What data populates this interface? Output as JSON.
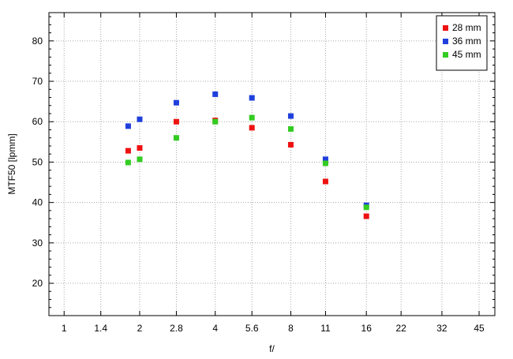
{
  "chart_data": {
    "type": "scatter",
    "title": "",
    "xlabel": "f/",
    "ylabel": "MTF50 [lpmm]",
    "x_scale": "log",
    "x_ticks": [
      "1",
      "1.4",
      "2",
      "2.8",
      "4",
      "5.6",
      "8",
      "11",
      "16",
      "22",
      "32",
      "45"
    ],
    "xlim": [
      0.87,
      52
    ],
    "y_ticks": [
      20,
      30,
      40,
      50,
      60,
      70,
      80
    ],
    "ylim": [
      12,
      87
    ],
    "grid": true,
    "legend_position": "top-right",
    "series": [
      {
        "name": "28 mm",
        "color": "#ee1111",
        "points": [
          {
            "x": 1.8,
            "y": 52.8
          },
          {
            "x": 2,
            "y": 53.5
          },
          {
            "x": 2.8,
            "y": 60
          },
          {
            "x": 4,
            "y": 60.3
          },
          {
            "x": 5.6,
            "y": 58.5
          },
          {
            "x": 8,
            "y": 54.3
          },
          {
            "x": 11,
            "y": 45.2
          },
          {
            "x": 16,
            "y": 36.6
          }
        ]
      },
      {
        "name": "36 mm",
        "color": "#1f3fdd",
        "points": [
          {
            "x": 1.8,
            "y": 58.9
          },
          {
            "x": 2,
            "y": 60.6
          },
          {
            "x": 2.8,
            "y": 64.7
          },
          {
            "x": 4,
            "y": 66.8
          },
          {
            "x": 5.6,
            "y": 65.9
          },
          {
            "x": 8,
            "y": 61.4
          },
          {
            "x": 11,
            "y": 50.7
          },
          {
            "x": 16,
            "y": 39.3
          }
        ]
      },
      {
        "name": "45 mm",
        "color": "#33cc22",
        "points": [
          {
            "x": 1.8,
            "y": 49.9
          },
          {
            "x": 2,
            "y": 50.7
          },
          {
            "x": 2.8,
            "y": 56
          },
          {
            "x": 4,
            "y": 60
          },
          {
            "x": 5.6,
            "y": 61
          },
          {
            "x": 8,
            "y": 58.2
          },
          {
            "x": 11,
            "y": 49.7
          },
          {
            "x": 16,
            "y": 38.8
          }
        ]
      }
    ]
  }
}
